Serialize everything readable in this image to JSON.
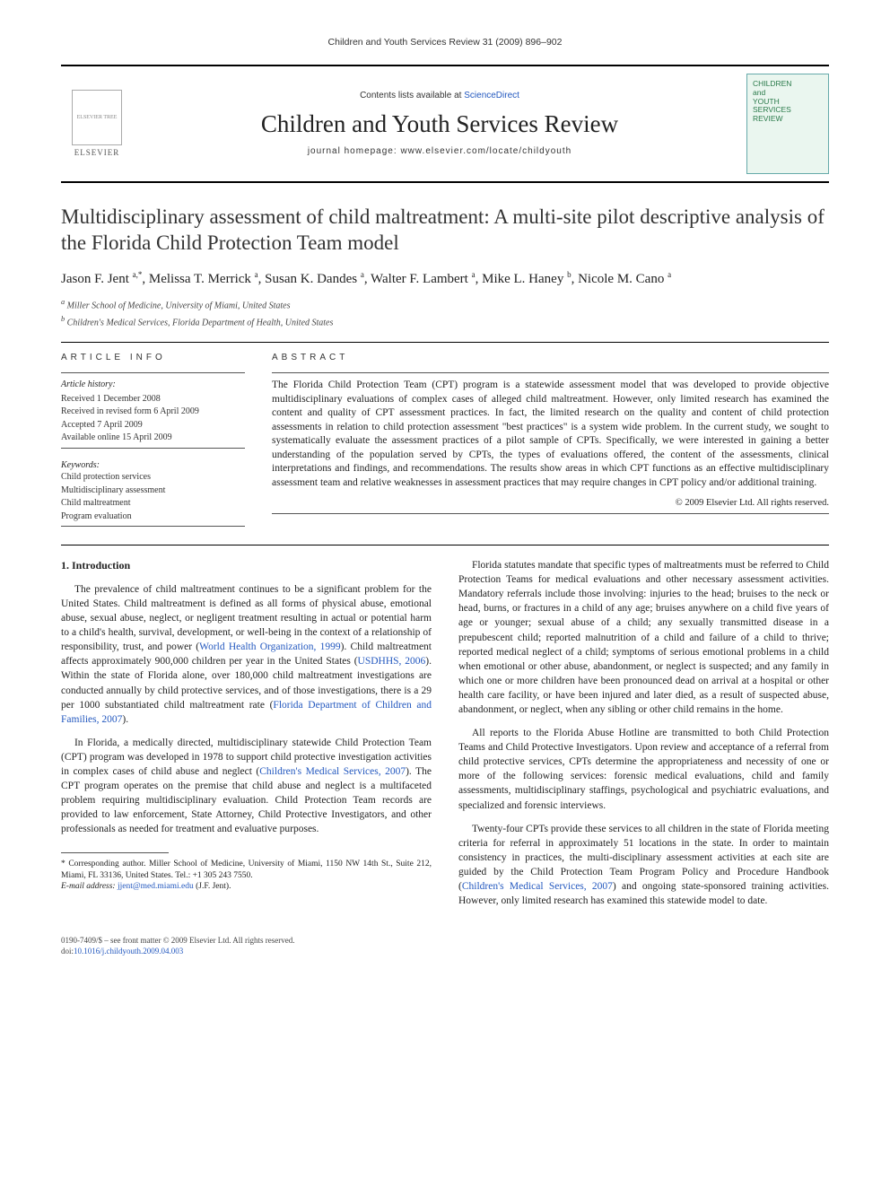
{
  "header": {
    "running_head": "Children and Youth Services Review 31 (2009) 896–902"
  },
  "banner": {
    "publisher_logo_label": "ELSEVIER TREE",
    "publisher_word": "ELSEVIER",
    "contents_prefix": "Contents lists available at ",
    "contents_link": "ScienceDirect",
    "journal_title": "Children and Youth Services Review",
    "homepage_prefix": "journal homepage: ",
    "homepage_url": "www.elsevier.com/locate/childyouth",
    "cover_text": "CHILDREN\nand\nYOUTH\nSERVICES\nREVIEW"
  },
  "article": {
    "title": "Multidisciplinary assessment of child maltreatment: A multi-site pilot descriptive analysis of the Florida Child Protection Team model",
    "authors_html": "Jason F. Jent <sup>a,</sup>*, Melissa T. Merrick <sup>a</sup>, Susan K. Dandes <sup>a</sup>, Walter F. Lambert <sup>a</sup>, Mike L. Haney <sup>b</sup>, Nicole M. Cano <sup>a</sup>",
    "authors": [
      {
        "name": "Jason F. Jent",
        "affil": "a",
        "mark": "*"
      },
      {
        "name": "Melissa T. Merrick",
        "affil": "a"
      },
      {
        "name": "Susan K. Dandes",
        "affil": "a"
      },
      {
        "name": "Walter F. Lambert",
        "affil": "a"
      },
      {
        "name": "Mike L. Haney",
        "affil": "b"
      },
      {
        "name": "Nicole M. Cano",
        "affil": "a"
      }
    ],
    "affiliations": {
      "a": "Miller School of Medicine, University of Miami, United States",
      "b": "Children's Medical Services, Florida Department of Health, United States"
    }
  },
  "article_info": {
    "heading": "ARTICLE INFO",
    "history_label": "Article history:",
    "history": [
      "Received 1 December 2008",
      "Received in revised form 6 April 2009",
      "Accepted 7 April 2009",
      "Available online 15 April 2009"
    ],
    "keywords_label": "Keywords:",
    "keywords": [
      "Child protection services",
      "Multidisciplinary assessment",
      "Child maltreatment",
      "Program evaluation"
    ]
  },
  "abstract": {
    "heading": "ABSTRACT",
    "text": "The Florida Child Protection Team (CPT) program is a statewide assessment model that was developed to provide objective multidisciplinary evaluations of complex cases of alleged child maltreatment. However, only limited research has examined the content and quality of CPT assessment practices. In fact, the limited research on the quality and content of child protection assessments in relation to child protection assessment \"best practices\" is a system wide problem. In the current study, we sought to systematically evaluate the assessment practices of a pilot sample of CPTs. Specifically, we were interested in gaining a better understanding of the population served by CPTs, the types of evaluations offered, the content of the assessments, clinical interpretations and findings, and recommendations. The results show areas in which CPT functions as an effective multidisciplinary assessment team and relative weaknesses in assessment practices that may require changes in CPT policy and/or additional training.",
    "copyright": "© 2009 Elsevier Ltd. All rights reserved."
  },
  "body": {
    "section_heading": "1. Introduction",
    "left_paragraphs": [
      "The prevalence of child maltreatment continues to be a significant problem for the United States. Child maltreatment is defined as all forms of physical abuse, emotional abuse, sexual abuse, neglect, or negligent treatment resulting in actual or potential harm to a child's health, survival, development, or well-being in the context of a relationship of responsibility, trust, and power (World Health Organization, 1999). Child maltreatment affects approximately 900,000 children per year in the United States (USDHHS, 2006). Within the state of Florida alone, over 180,000 child maltreatment investigations are conducted annually by child protective services, and of those investigations, there is a 29 per 1000 substantiated child maltreatment rate (Florida Department of Children and Families, 2007).",
      "In Florida, a medically directed, multidisciplinary statewide Child Protection Team (CPT) program was developed in 1978 to support child protective investigation activities in complex cases of child abuse and neglect (Children's Medical Services, 2007). The CPT program operates on the premise that child abuse and neglect is a multifaceted problem requiring multidisciplinary evaluation. Child Protection Team records are provided to law enforcement, State Attorney, Child Protective Investigators, and other professionals as needed for treatment and evaluative purposes."
    ],
    "right_paragraphs": [
      "Florida statutes mandate that specific types of maltreatments must be referred to Child Protection Teams for medical evaluations and other necessary assessment activities. Mandatory referrals include those involving: injuries to the head; bruises to the neck or head, burns, or fractures in a child of any age; bruises anywhere on a child five years of age or younger; sexual abuse of a child; any sexually transmitted disease in a prepubescent child; reported malnutrition of a child and failure of a child to thrive; reported medical neglect of a child; symptoms of serious emotional problems in a child when emotional or other abuse, abandonment, or neglect is suspected; and any family in which one or more children have been pronounced dead on arrival at a hospital or other health care facility, or have been injured and later died, as a result of suspected abuse, abandonment, or neglect, when any sibling or other child remains in the home.",
      "All reports to the Florida Abuse Hotline are transmitted to both Child Protection Teams and Child Protective Investigators. Upon review and acceptance of a referral from child protective services, CPTs determine the appropriateness and necessity of one or more of the following services: forensic medical evaluations, child and family assessments, multidisciplinary staffings, psychological and psychiatric evaluations, and specialized and forensic interviews.",
      "Twenty-four CPTs provide these services to all children in the state of Florida meeting criteria for referral in approximately 51 locations in the state. In order to maintain consistency in practices, the multi-disciplinary assessment activities at each site are guided by the Child Protection Team Program Policy and Procedure Handbook (Children's Medical Services, 2007) and ongoing state-sponsored training activities. However, only limited research has examined this statewide model to date."
    ],
    "citations_links": [
      "World Health Organization, 1999",
      "USDHHS, 2006",
      "Florida Department of Children and Families, 2007",
      "Children's Medical Services, 2007",
      "Children's Medical Services, 2007"
    ]
  },
  "footnote": {
    "corr": "* Corresponding author. Miller School of Medicine, University of Miami, 1150 NW 14th St., Suite 212, Miami, FL 33136, United States. Tel.: +1 305 243 7550.",
    "email_label": "E-mail address:",
    "email": "jjent@med.miami.edu",
    "email_suffix": "(J.F. Jent)."
  },
  "footer": {
    "issn_line": "0190-7409/$ – see front matter © 2009 Elsevier Ltd. All rights reserved.",
    "doi_prefix": "doi:",
    "doi": "10.1016/j.childyouth.2009.04.003"
  },
  "colors": {
    "link": "#2358bf",
    "rule": "#000000",
    "cover_bg": "#eaf6ef",
    "cover_text": "#2a7a4a"
  }
}
